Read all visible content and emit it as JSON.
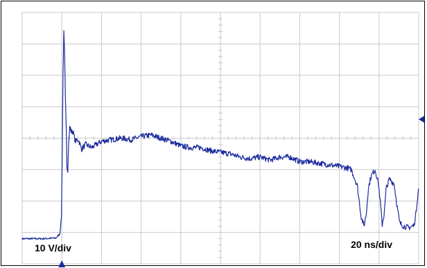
{
  "chart_data": {
    "type": "line",
    "title": "",
    "xlabel": "",
    "ylabel": "",
    "grid": true,
    "grid_divisions": {
      "x": 10,
      "y": 8
    },
    "xlim": [
      0,
      10
    ],
    "ylim": [
      -4,
      4
    ],
    "annotations": {
      "vertical_scale": "10 V/div",
      "horizontal_scale": "20 ns/div"
    },
    "trigger_marker": {
      "x": 1.0
    },
    "level_marker": {
      "y": 0.6
    },
    "colors": {
      "trace": "#1a2a9c",
      "grid": "#c8c8c8",
      "marker": "#1a2a9c"
    },
    "series": [
      {
        "values": [
          [
            0.0,
            -3.2
          ],
          [
            0.5,
            -3.2
          ],
          [
            0.85,
            -3.18
          ],
          [
            0.95,
            -3.05
          ],
          [
            0.99,
            -2.5
          ],
          [
            1.01,
            -0.5
          ],
          [
            1.03,
            2.0
          ],
          [
            1.05,
            3.4
          ],
          [
            1.07,
            2.7
          ],
          [
            1.09,
            1.3
          ],
          [
            1.11,
            0.4
          ],
          [
            1.13,
            -0.9
          ],
          [
            1.15,
            -1.0
          ],
          [
            1.17,
            -0.2
          ],
          [
            1.2,
            0.35
          ],
          [
            1.24,
            0.2
          ],
          [
            1.28,
            0.22
          ],
          [
            1.34,
            -0.1
          ],
          [
            1.42,
            -0.05
          ],
          [
            1.5,
            -0.35
          ],
          [
            1.6,
            -0.2
          ],
          [
            1.75,
            -0.3
          ],
          [
            2.0,
            -0.1
          ],
          [
            2.25,
            -0.05
          ],
          [
            2.5,
            0.0
          ],
          [
            2.75,
            -0.05
          ],
          [
            3.0,
            0.05
          ],
          [
            3.25,
            0.1
          ],
          [
            3.5,
            0.0
          ],
          [
            3.75,
            -0.1
          ],
          [
            4.0,
            -0.25
          ],
          [
            4.25,
            -0.3
          ],
          [
            4.5,
            -0.3
          ],
          [
            4.75,
            -0.4
          ],
          [
            5.0,
            -0.45
          ],
          [
            5.25,
            -0.5
          ],
          [
            5.5,
            -0.6
          ],
          [
            5.75,
            -0.65
          ],
          [
            6.0,
            -0.6
          ],
          [
            6.25,
            -0.7
          ],
          [
            6.5,
            -0.6
          ],
          [
            6.75,
            -0.6
          ],
          [
            7.0,
            -0.75
          ],
          [
            7.25,
            -0.75
          ],
          [
            7.5,
            -0.8
          ],
          [
            7.75,
            -0.85
          ],
          [
            8.0,
            -0.9
          ],
          [
            8.2,
            -0.95
          ],
          [
            8.3,
            -1.0
          ],
          [
            8.45,
            -1.5
          ],
          [
            8.55,
            -2.5
          ],
          [
            8.62,
            -2.8
          ],
          [
            8.68,
            -2.4
          ],
          [
            8.73,
            -1.6
          ],
          [
            8.8,
            -1.2
          ],
          [
            8.9,
            -1.0
          ],
          [
            8.98,
            -1.4
          ],
          [
            9.03,
            -2.0
          ],
          [
            9.08,
            -2.75
          ],
          [
            9.13,
            -2.4
          ],
          [
            9.18,
            -1.6
          ],
          [
            9.26,
            -1.3
          ],
          [
            9.38,
            -1.45
          ],
          [
            9.46,
            -2.2
          ],
          [
            9.52,
            -2.7
          ],
          [
            9.62,
            -2.8
          ],
          [
            9.75,
            -2.85
          ],
          [
            9.88,
            -2.78
          ],
          [
            9.93,
            -2.4
          ],
          [
            9.97,
            -1.9
          ],
          [
            10.0,
            -1.6
          ]
        ]
      }
    ]
  }
}
